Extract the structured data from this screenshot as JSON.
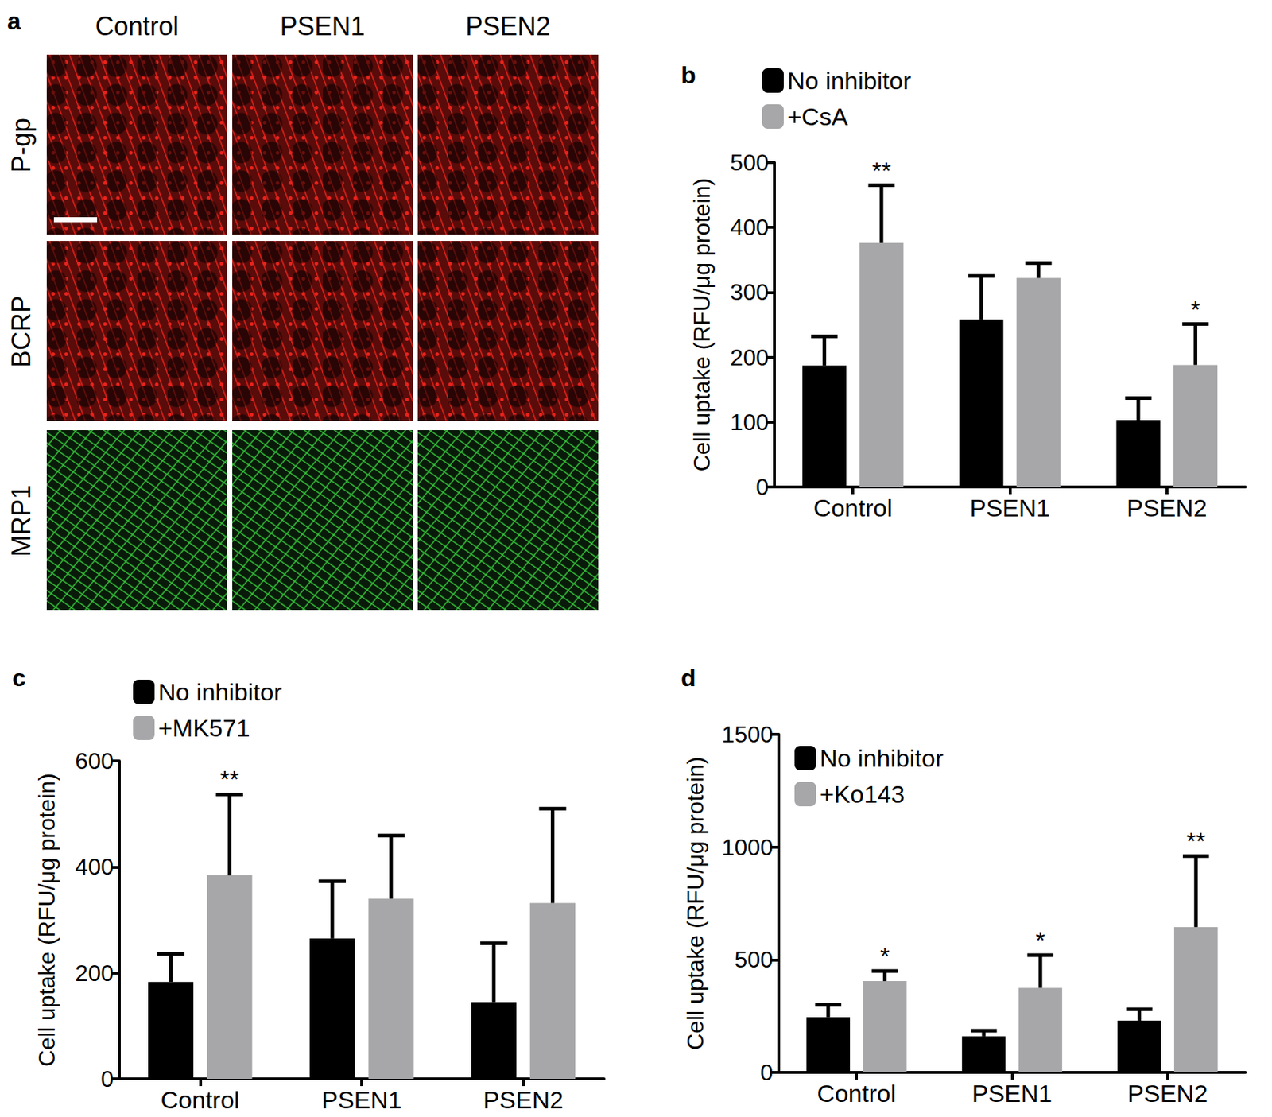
{
  "images": {
    "panel": "a",
    "columns": [
      "Control",
      "PSEN1",
      "PSEN2"
    ],
    "rows": [
      "P-gp",
      "BCRP",
      "MRP1"
    ],
    "row_colors": [
      "#e8231c",
      "#e8231c",
      "#35c43a"
    ]
  },
  "chart_data": [
    {
      "panel": "b",
      "type": "bar",
      "categories": [
        "Control",
        "PSEN1",
        "PSEN2"
      ],
      "ylabel": "Cell uptake (RFU/μg protein)",
      "ylim": [
        0,
        500
      ],
      "yticks": [
        0,
        100,
        200,
        300,
        400,
        500
      ],
      "grid": false,
      "legend": "upper left",
      "series": [
        {
          "name": "No inhibitor",
          "color": "#000000",
          "values": [
            187,
            258,
            103
          ],
          "errors": [
            45,
            67,
            34
          ],
          "significance": [
            null,
            null,
            null
          ]
        },
        {
          "name": "+CsA",
          "color": "#a7a7a9",
          "values": [
            376,
            322,
            188
          ],
          "errors": [
            89,
            23,
            63
          ],
          "significance": [
            "**",
            null,
            "*"
          ]
        }
      ]
    },
    {
      "panel": "c",
      "type": "bar",
      "categories": [
        "Control",
        "PSEN1",
        "PSEN2"
      ],
      "ylabel": "Cell uptake (RFU/μg protein)",
      "ylim": [
        0,
        600
      ],
      "yticks": [
        0,
        200,
        400,
        600
      ],
      "grid": false,
      "legend": "upper left",
      "series": [
        {
          "name": "No inhibitor",
          "color": "#000000",
          "values": [
            183,
            265,
            145
          ],
          "errors": [
            53,
            108,
            111
          ],
          "significance": [
            null,
            null,
            null
          ]
        },
        {
          "name": "+MK571",
          "color": "#a7a7a9",
          "values": [
            384,
            340,
            332
          ],
          "errors": [
            153,
            119,
            178
          ],
          "significance": [
            "**",
            null,
            null
          ]
        }
      ]
    },
    {
      "panel": "d",
      "type": "bar",
      "categories": [
        "Control",
        "PSEN1",
        "PSEN2"
      ],
      "ylabel": "Cell uptake (RFU/μg protein)",
      "ylim": [
        0,
        1500
      ],
      "yticks": [
        0,
        500,
        1000,
        1500
      ],
      "grid": false,
      "legend": "upper left",
      "series": [
        {
          "name": "No inhibitor",
          "color": "#000000",
          "values": [
            245,
            160,
            230
          ],
          "errors": [
            55,
            25,
            50
          ],
          "significance": [
            null,
            null,
            null
          ]
        },
        {
          "name": "+Ko143",
          "color": "#a7a7a9",
          "values": [
            405,
            375,
            645
          ],
          "errors": [
            45,
            145,
            315
          ],
          "significance": [
            "*",
            "*",
            "**"
          ]
        }
      ]
    }
  ]
}
